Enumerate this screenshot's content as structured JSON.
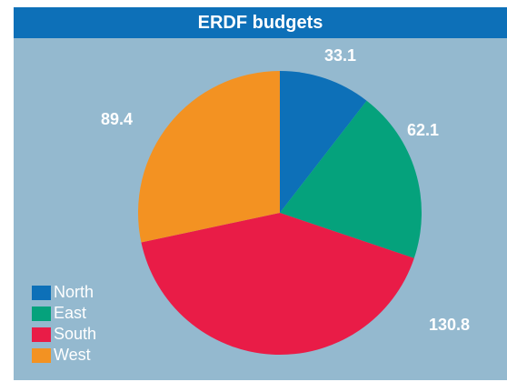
{
  "chart_data": {
    "type": "pie",
    "title": "ERDF budgets",
    "categories": [
      "North",
      "East",
      "South",
      "West"
    ],
    "values": [
      33.1,
      62.1,
      130.8,
      89.4
    ],
    "colors": [
      "#0d70b8",
      "#05a27c",
      "#e91c47",
      "#f39222"
    ],
    "value_labels": [
      "33.1",
      "62.1",
      "130.8",
      "89.4"
    ],
    "legend": {
      "position": "bottom-left",
      "items": [
        {
          "label": "North",
          "color": "#0d70b8"
        },
        {
          "label": "East",
          "color": "#05a27c"
        },
        {
          "label": "South",
          "color": "#e91c47"
        },
        {
          "label": "West",
          "color": "#f39222"
        }
      ]
    },
    "background_color": "#94b9cf",
    "title_bar_color": "#0d70b8",
    "grid": false
  }
}
